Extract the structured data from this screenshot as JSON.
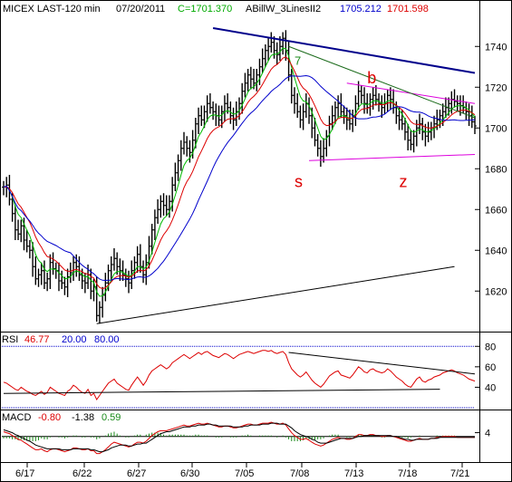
{
  "header": {
    "symbol": "MICEX LAST-120 min",
    "date": "07/20/2011",
    "close_label": "C=1701.370",
    "study_name": "ABillW_3LinesII2",
    "study_val1": "1705.212",
    "study_val2": "1701.598"
  },
  "annotations": [
    {
      "text": "7",
      "color": "#1a8a1a",
      "x": "7/08",
      "y": 1731
    },
    {
      "text": "b",
      "color": "#dd0000",
      "x": "7/15",
      "y": 1722
    },
    {
      "text": "s",
      "color": "#dd0000",
      "x": "7/09",
      "y": 1671
    },
    {
      "text": "z",
      "color": "#dd0000",
      "x": "7/18",
      "y": 1671
    }
  ],
  "colors": {
    "price": "#000000",
    "ma_fast": "#00bb00",
    "ma_mid": "#dd0000",
    "ma_slow": "#0000cc",
    "rsi": "#dd0000",
    "macd": "#dd0000",
    "macd_signal": "#000000",
    "histogram": "#1a8a1a",
    "trend_magenta": "#dd00dd",
    "trend_navy": "#00008b",
    "trend_green": "#1a6a1a",
    "trend_black": "#000000"
  },
  "chart_data": [
    {
      "type": "line",
      "panel": "price",
      "categories": [
        "6/17",
        "6/22",
        "6/27",
        "6/30",
        "7/05",
        "7/08",
        "7/13",
        "7/18",
        "7/21"
      ],
      "y_ticks": [
        1620,
        1640,
        1660,
        1680,
        1700,
        1720,
        1740
      ],
      "ylim": [
        1601,
        1753
      ],
      "series": [
        {
          "name": "",
          "kind": "ohlc",
          "x": [
            0,
            1,
            2,
            3,
            4,
            5,
            6,
            7,
            8,
            9,
            10,
            11,
            12,
            13,
            14,
            15,
            16,
            17,
            18,
            19,
            20,
            21,
            22,
            23,
            24,
            25,
            26,
            27,
            28,
            29,
            30,
            31,
            32,
            33,
            34,
            35,
            36,
            37,
            38,
            39,
            40,
            41,
            42,
            43,
            44,
            45,
            46,
            47,
            48,
            49,
            50,
            51,
            52,
            53,
            54,
            55,
            56,
            57,
            58,
            59,
            60,
            61,
            62,
            63,
            64,
            65,
            66,
            67,
            68,
            69,
            70,
            71,
            72,
            73,
            74,
            75,
            76,
            77,
            78,
            79,
            80,
            81,
            82,
            83,
            84,
            85,
            86,
            87,
            88,
            89,
            90,
            91,
            92,
            93,
            94,
            95,
            96,
            97,
            98,
            99,
            100,
            101,
            102,
            103,
            104,
            105,
            106,
            107,
            108,
            109,
            110,
            111,
            112,
            113,
            114,
            115,
            116,
            117,
            118,
            119,
            120,
            121,
            122,
            123,
            124,
            125,
            126,
            127,
            128,
            129,
            130,
            131,
            132,
            133,
            134,
            135,
            136,
            137,
            138,
            139,
            140,
            141,
            142,
            143,
            144,
            145,
            146,
            147,
            148,
            149,
            150,
            151,
            152,
            153,
            154,
            155,
            156,
            157,
            158,
            159,
            160,
            161,
            162
          ],
          "values": [
            1671,
            1672,
            1665,
            1658,
            1650,
            1648,
            1652,
            1645,
            1642,
            1640,
            1632,
            1626,
            1628,
            1630,
            1624,
            1626,
            1634,
            1631,
            1630,
            1625,
            1624,
            1622,
            1627,
            1629,
            1634,
            1632,
            1628,
            1625,
            1624,
            1628,
            1620,
            1622,
            1608,
            1612,
            1618,
            1624,
            1630,
            1633,
            1636,
            1632,
            1630,
            1628,
            1626,
            1624,
            1630,
            1634,
            1638,
            1632,
            1628,
            1634,
            1642,
            1650,
            1656,
            1660,
            1664,
            1662,
            1660,
            1664,
            1672,
            1678,
            1684,
            1690,
            1693,
            1690,
            1688,
            1694,
            1702,
            1706,
            1704,
            1708,
            1712,
            1710,
            1708,
            1706,
            1704,
            1708,
            1712,
            1710,
            1706,
            1704,
            1708,
            1712,
            1718,
            1722,
            1726,
            1724,
            1722,
            1726,
            1730,
            1734,
            1738,
            1740,
            1742,
            1738,
            1736,
            1740,
            1744,
            1738,
            1726,
            1716,
            1712,
            1708,
            1704,
            1708,
            1712,
            1706,
            1700,
            1694,
            1690,
            1686,
            1690,
            1696,
            1702,
            1706,
            1710,
            1712,
            1708,
            1706,
            1704,
            1702,
            1706,
            1712,
            1718,
            1716,
            1712,
            1710,
            1714,
            1716,
            1714,
            1712,
            1710,
            1712,
            1716,
            1714,
            1710,
            1706,
            1704,
            1702,
            1698,
            1694,
            1692,
            1696,
            1700,
            1702,
            1698,
            1696,
            1698,
            1700,
            1702,
            1704,
            1706,
            1708,
            1710,
            1712,
            1714,
            1713,
            1712,
            1711,
            1710,
            1708,
            1706,
            1703,
            1701
          ]
        },
        {
          "name": "",
          "kind": "ma_fast"
        },
        {
          "name": "",
          "kind": "ma_mid"
        },
        {
          "name": "",
          "kind": "ma_slow"
        }
      ],
      "trendlines": [
        {
          "name": "",
          "color": "navy",
          "from": [
            72,
            1749
          ],
          "to": [
            162,
            1727
          ]
        },
        {
          "name": "",
          "color": "magenta",
          "from": [
            118,
            1722
          ],
          "to": [
            162,
            1712
          ]
        },
        {
          "name": "",
          "color": "magenta",
          "from": [
            105,
            1684
          ],
          "to": [
            162,
            1687
          ]
        },
        {
          "name": "",
          "color": "green",
          "from": [
            98,
            1740
          ],
          "to": [
            162,
            1705
          ]
        },
        {
          "name": "",
          "color": "black",
          "from": [
            32,
            1604
          ],
          "to": [
            155,
            1632
          ]
        }
      ]
    },
    {
      "type": "line",
      "panel": "rsi",
      "label": "RSI",
      "value": "46.77",
      "levels": [
        "20.00",
        "80.00"
      ],
      "y_ticks": [
        40,
        60,
        80
      ],
      "ylim": [
        20,
        82
      ],
      "series": [
        {
          "name": "",
          "values": [
            45,
            44,
            42,
            40,
            38,
            37,
            40,
            38,
            36,
            35,
            33,
            32,
            34,
            36,
            33,
            35,
            40,
            38,
            36,
            34,
            33,
            32,
            36,
            38,
            42,
            40,
            37,
            35,
            34,
            38,
            32,
            34,
            28,
            32,
            36,
            40,
            44,
            46,
            48,
            44,
            42,
            40,
            38,
            37,
            42,
            46,
            50,
            46,
            42,
            46,
            52,
            56,
            58,
            60,
            62,
            60,
            58,
            60,
            64,
            66,
            68,
            70,
            72,
            70,
            68,
            70,
            72,
            74,
            72,
            74,
            75,
            73,
            71,
            70,
            69,
            71,
            73,
            72,
            70,
            68,
            70,
            72,
            73,
            74,
            75,
            74,
            73,
            74,
            75,
            76,
            76,
            75,
            76,
            74,
            73,
            74,
            75,
            72,
            64,
            58,
            55,
            52,
            50,
            52,
            55,
            51,
            47,
            44,
            42,
            40,
            43,
            47,
            51,
            53,
            55,
            56,
            52,
            51,
            50,
            49,
            52,
            56,
            60,
            58,
            55,
            54,
            57,
            58,
            56,
            55,
            54,
            55,
            58,
            56,
            53,
            50,
            48,
            46,
            43,
            41,
            40,
            44,
            48,
            50,
            46,
            45,
            47,
            48,
            50,
            51,
            52,
            54,
            55,
            56,
            57,
            56,
            54,
            53,
            52,
            50,
            48,
            47,
            46
          ]
        }
      ],
      "trendlines": [
        {
          "name": "",
          "from": [
            98,
            74
          ],
          "to": [
            162,
            53
          ]
        },
        {
          "name": "",
          "from": [
            0,
            34
          ],
          "to": [
            150,
            38
          ]
        }
      ]
    },
    {
      "type": "line",
      "panel": "macd",
      "label": "MACD",
      "values_shown": [
        "-0.80",
        "-1.38",
        "0.59"
      ],
      "y_ticks": [
        4
      ],
      "ylim": [
        -25,
        15
      ],
      "series": [
        {
          "name": "",
          "kind": "macd",
          "values": [
            5,
            4,
            3,
            1,
            -1,
            -3,
            -4,
            -6,
            -8,
            -10,
            -12,
            -14,
            -14,
            -13,
            -15,
            -16,
            -14,
            -13,
            -13,
            -14,
            -15,
            -16,
            -15,
            -14,
            -12,
            -12,
            -13,
            -14,
            -14,
            -13,
            -15,
            -15,
            -18,
            -18,
            -16,
            -14,
            -11,
            -8,
            -6,
            -7,
            -8,
            -9,
            -10,
            -11,
            -10,
            -8,
            -6,
            -6,
            -7,
            -5,
            -2,
            1,
            3,
            5,
            6,
            6,
            6,
            7,
            8,
            9,
            10,
            11,
            12,
            11,
            11,
            12,
            13,
            14,
            13,
            13,
            14,
            13,
            12,
            11,
            10,
            10,
            11,
            11,
            10,
            9,
            9,
            10,
            11,
            12,
            13,
            13,
            12,
            12,
            13,
            14,
            14,
            14,
            15,
            14,
            13,
            13,
            14,
            12,
            8,
            4,
            1,
            -1,
            -3,
            -3,
            -2,
            -4,
            -6,
            -8,
            -9,
            -10,
            -9,
            -7,
            -5,
            -3,
            -2,
            -1,
            -2,
            -2,
            -3,
            -3,
            -2,
            0,
            2,
            2,
            1,
            1,
            2,
            2,
            1,
            1,
            0,
            0,
            1,
            1,
            0,
            -1,
            -2,
            -3,
            -4,
            -5,
            -5,
            -4,
            -3,
            -2,
            -3,
            -3,
            -3,
            -2,
            -2,
            -1,
            -1,
            0,
            0,
            0,
            0,
            0,
            -1,
            -1,
            -1,
            -1,
            -1,
            -1,
            -1
          ]
        },
        {
          "name": "",
          "kind": "signal",
          "values": [
            7,
            6,
            5,
            4,
            2,
            1,
            -1,
            -2,
            -4,
            -5,
            -7,
            -9,
            -10,
            -11,
            -12,
            -13,
            -13,
            -13,
            -13,
            -13,
            -14,
            -14,
            -14,
            -14,
            -13,
            -13,
            -13,
            -13,
            -13,
            -13,
            -14,
            -14,
            -15,
            -16,
            -16,
            -15,
            -14,
            -12,
            -11,
            -10,
            -9,
            -9,
            -9,
            -10,
            -10,
            -9,
            -8,
            -8,
            -7,
            -7,
            -5,
            -3,
            -1,
            1,
            3,
            4,
            5,
            5,
            6,
            7,
            8,
            9,
            10,
            10,
            10,
            11,
            11,
            12,
            12,
            12,
            13,
            13,
            12,
            12,
            11,
            11,
            11,
            11,
            11,
            10,
            10,
            10,
            10,
            11,
            11,
            12,
            12,
            12,
            12,
            13,
            13,
            13,
            14,
            14,
            14,
            13,
            13,
            13,
            11,
            9,
            6,
            4,
            2,
            1,
            0,
            -1,
            -3,
            -4,
            -6,
            -7,
            -7,
            -7,
            -6,
            -5,
            -4,
            -3,
            -2,
            -2,
            -2,
            -2,
            -2,
            -1,
            0,
            0,
            1,
            1,
            1,
            1,
            1,
            1,
            1,
            1,
            1,
            1,
            0,
            0,
            -1,
            -2,
            -3,
            -3,
            -4,
            -4,
            -3,
            -3,
            -3,
            -3,
            -3,
            -2,
            -2,
            -2,
            -1,
            -1,
            -1,
            -1,
            -1,
            -1,
            -1,
            -1,
            -1,
            -1,
            -1,
            -1,
            -1
          ]
        }
      ]
    }
  ]
}
